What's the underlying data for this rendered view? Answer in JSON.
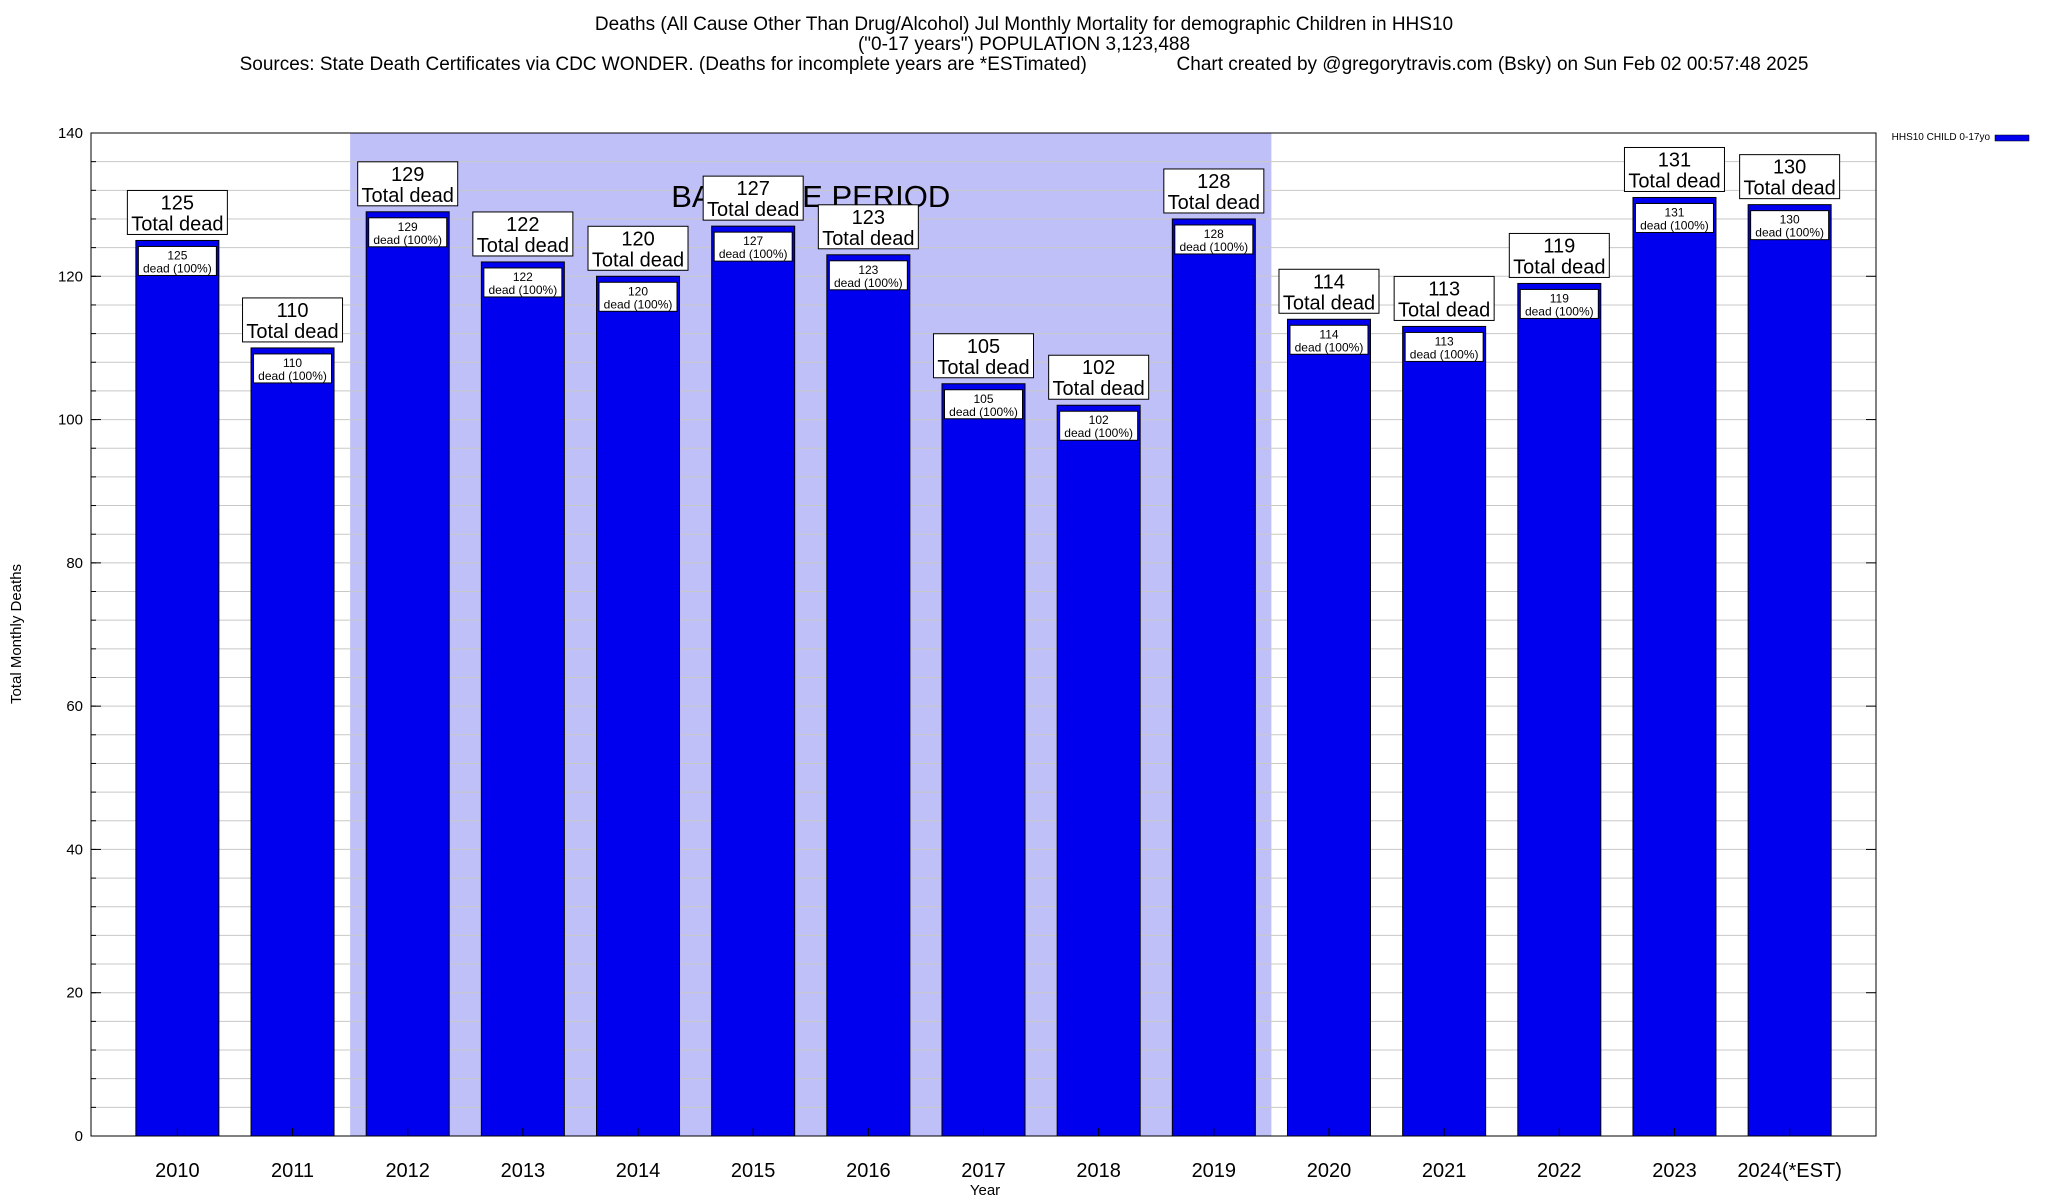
{
  "header": {
    "title_line1": "Deaths (All Cause Other Than Drug/Alcohol) Jul Monthly Mortality for demographic Children in HHS10",
    "title_line2": "(\"0-17 years\") POPULATION 3,123,488",
    "title_line3": "Sources: State Death Certificates via CDC WONDER. (Deaths for incomplete years are *ESTimated)                 Chart created by @gregorytravis.com (Bsky) on Sun Feb 02 00:57:48 2025"
  },
  "chart_data": {
    "type": "bar",
    "xlabel": "Year",
    "ylabel": "Total Monthly Deaths",
    "ylim": [
      0,
      140
    ],
    "yticks": [
      0,
      20,
      40,
      60,
      80,
      100,
      120,
      140
    ],
    "y_minor_step": 4,
    "grid": true,
    "categories": [
      "2010",
      "2011",
      "2012",
      "2013",
      "2014",
      "2015",
      "2016",
      "2017",
      "2018",
      "2019",
      "2020",
      "2021",
      "2022",
      "2023",
      "2024(*EST)"
    ],
    "series": [
      {
        "name": "HHS10 CHILD 0-17yo",
        "color": "#0000ee",
        "values": [
          125,
          110,
          129,
          122,
          120,
          127,
          123,
          105,
          102,
          128,
          114,
          113,
          119,
          131,
          130
        ]
      }
    ],
    "top_label_suffix": "Total dead",
    "inner_label_suffix": "dead (100%)",
    "legend_position": "top-right",
    "baseline_band": {
      "label": "BASELINE PERIOD",
      "from": "2012",
      "to": "2019",
      "color": "#c0c0f8"
    }
  }
}
